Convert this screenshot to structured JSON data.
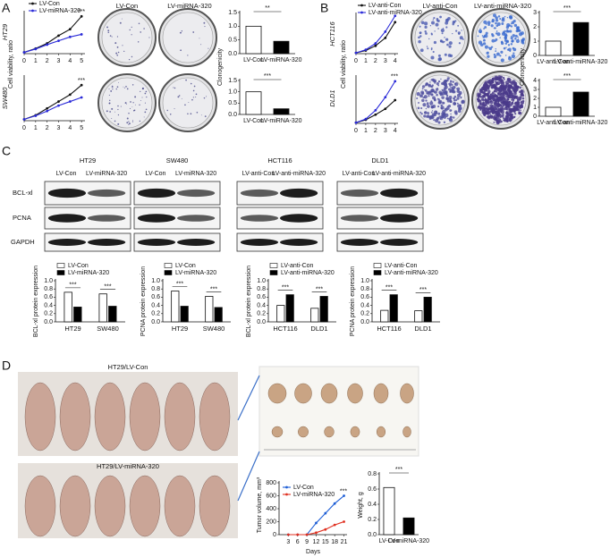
{
  "panel_labels": [
    "A",
    "B",
    "C",
    "D"
  ],
  "colony_photos": {
    "A": [
      "LV-Con",
      "LV-miRNA-320"
    ],
    "B": [
      "LV-anti-Con",
      "LV-anti-miRNA-320"
    ]
  },
  "western_blot": {
    "groups": [
      {
        "title": "HT29",
        "lanes": [
          "LV-Con",
          "LV-miRNA-320"
        ]
      },
      {
        "title": "SW480",
        "lanes": [
          "LV-Con",
          "LV-miRNA-320"
        ]
      },
      {
        "title": "HCT116",
        "lanes": [
          "LV-anti-Con",
          "LV-anti-miRNA-320"
        ]
      },
      {
        "title": "DLD1",
        "lanes": [
          "LV-anti-Con",
          "LV-anti-miRNA-320"
        ]
      }
    ],
    "rows": [
      "BCL-xl",
      "PCNA",
      "GAPDH"
    ]
  },
  "mouse_photos": [
    "HT29/LV-Con",
    "HT29/LV-miRNA-320"
  ],
  "chart_data": [
    {
      "type": "line",
      "side_label": "HT29",
      "y_label": "Cell viability, ratio",
      "x": [
        0,
        1,
        2,
        3,
        4,
        5
      ],
      "xlim": [
        0,
        5.3
      ],
      "xticks": [
        0,
        1,
        2,
        3,
        4,
        5
      ],
      "ylim": [
        0,
        1.6
      ],
      "series": [
        {
          "name": "LV-Con",
          "color": "#111111",
          "values": [
            0.05,
            0.2,
            0.4,
            0.7,
            0.95,
            1.45
          ]
        },
        {
          "name": "LV-miRNA-320",
          "color": "#2a2ad8",
          "values": [
            0.05,
            0.18,
            0.35,
            0.5,
            0.65,
            0.75
          ]
        }
      ],
      "annotations": [
        "***"
      ]
    },
    {
      "type": "line",
      "side_label": "SW480",
      "x": [
        0,
        1,
        2,
        3,
        4,
        5
      ],
      "xlim": [
        0,
        5.3
      ],
      "xticks": [
        0,
        1,
        2,
        3,
        4,
        5
      ],
      "ylim": [
        0,
        1.6
      ],
      "series": [
        {
          "color": "#111111",
          "values": [
            0.05,
            0.2,
            0.45,
            0.7,
            0.95,
            1.3
          ]
        },
        {
          "color": "#2a2ad8",
          "values": [
            0.05,
            0.18,
            0.35,
            0.55,
            0.7,
            0.85
          ]
        }
      ],
      "annotations": [
        "***"
      ]
    },
    {
      "type": "bar",
      "y_label": "Clonogenicity",
      "categories": [
        "LV-Con",
        "LV-miRNA-320"
      ],
      "values": [
        1.0,
        0.45
      ],
      "colors": [
        "#ffffff",
        "#000000"
      ],
      "ylim": [
        0,
        1.5
      ],
      "yticks": [
        {
          "value": 0,
          "label": "0.0"
        },
        0.5,
        {
          "value": 1,
          "label": "1.0"
        },
        1.5
      ],
      "annotations": [
        "**"
      ]
    },
    {
      "type": "bar",
      "categories": [
        "LV-Con",
        "LV-miRNA-320"
      ],
      "values": [
        1.0,
        0.25
      ],
      "colors": [
        "#ffffff",
        "#000000"
      ],
      "ylim": [
        0,
        1.5
      ],
      "yticks": [
        {
          "value": 0,
          "label": "0.0"
        },
        0.5,
        {
          "value": 1,
          "label": "1.0"
        },
        1.5
      ],
      "annotations": [
        "***"
      ]
    },
    {
      "type": "line",
      "side_label": "HCT116",
      "y_label": "Cell viability, ratio",
      "x": [
        0,
        1,
        2,
        3,
        4
      ],
      "xlim": [
        0,
        4.3
      ],
      "xticks": [
        0,
        1,
        2,
        3,
        4
      ],
      "ylim": [
        0,
        2.5
      ],
      "series": [
        {
          "name": "LV-anti-Con",
          "color": "#111111",
          "values": [
            0.05,
            0.2,
            0.5,
            1.0,
            2.0
          ]
        },
        {
          "name": "LV-anti-miRNA-320",
          "color": "#2a2ad8",
          "values": [
            0.05,
            0.25,
            0.65,
            1.4,
            2.4
          ]
        }
      ]
    },
    {
      "type": "line",
      "side_label": "DLD1",
      "x": [
        0,
        1,
        2,
        3,
        4
      ],
      "xlim": [
        0,
        4.3
      ],
      "xticks": [
        0,
        1,
        2,
        3,
        4
      ],
      "ylim": [
        0,
        3.2
      ],
      "series": [
        {
          "color": "#111111",
          "values": [
            0.05,
            0.25,
            0.6,
            1.0,
            1.6
          ]
        },
        {
          "color": "#2a2ad8",
          "values": [
            0.05,
            0.3,
            0.9,
            1.8,
            2.9
          ]
        }
      ],
      "annotations": [
        "***"
      ]
    },
    {
      "type": "bar",
      "y_label": "Clonogenicity",
      "categories": [
        "LV-anti-Con",
        "LV-anti-miRNA-320"
      ],
      "values": [
        1.0,
        2.3
      ],
      "colors": [
        "#ffffff",
        "#000000"
      ],
      "ylim": [
        0,
        3
      ],
      "yticks": [
        0,
        1,
        2,
        3
      ],
      "annotations": [
        "***"
      ]
    },
    {
      "type": "bar",
      "categories": [
        "LV-anti-Con",
        "LV-anti-miRNA-320"
      ],
      "values": [
        1.0,
        2.7
      ],
      "colors": [
        "#ffffff",
        "#000000"
      ],
      "ylim": [
        0,
        4
      ],
      "yticks": [
        0,
        1,
        2,
        3,
        4
      ],
      "annotations": [
        "***"
      ]
    },
    {
      "type": "grouped_bar",
      "y_label": "BCL-xl protein expression",
      "categories": [
        "HT29",
        "SW480"
      ],
      "series": [
        {
          "name": "LV-Con",
          "color": "#ffffff",
          "values": [
            0.72,
            0.68
          ]
        },
        {
          "name": "LV-miRNA-320",
          "color": "#000000",
          "values": [
            0.36,
            0.38
          ]
        }
      ],
      "ylim": [
        0,
        1
      ],
      "yticks": [
        {
          "value": 0,
          "label": "0.0"
        },
        0.2,
        0.4,
        0.6,
        0.8,
        {
          "value": 1,
          "label": "1.0"
        }
      ],
      "annotations": [
        "***",
        "***"
      ]
    },
    {
      "type": "grouped_bar",
      "y_label": "PCNA protein expression",
      "categories": [
        "HT29",
        "SW480"
      ],
      "series": [
        {
          "name": "LV-Con",
          "color": "#ffffff",
          "values": [
            0.75,
            0.62
          ]
        },
        {
          "name": "LV-miRNA-320",
          "color": "#000000",
          "values": [
            0.38,
            0.35
          ]
        }
      ],
      "ylim": [
        0,
        1
      ],
      "yticks": [
        {
          "value": 0,
          "label": "0.0"
        },
        0.2,
        0.4,
        0.6,
        0.8,
        {
          "value": 1,
          "label": "1.0"
        }
      ],
      "annotations": [
        "***",
        "***"
      ]
    },
    {
      "type": "grouped_bar",
      "y_label": "BCL-xl protein expression",
      "categories": [
        "HCT116",
        "DLD1"
      ],
      "series": [
        {
          "name": "LV-anti-Con",
          "color": "#ffffff",
          "values": [
            0.4,
            0.33
          ]
        },
        {
          "name": "LV-anti-miRNA-320",
          "color": "#000000",
          "values": [
            0.66,
            0.62
          ]
        }
      ],
      "ylim": [
        0,
        1
      ],
      "yticks": [
        {
          "value": 0,
          "label": "0.0"
        },
        0.2,
        0.4,
        0.6,
        0.8,
        {
          "value": 1,
          "label": "1.0"
        }
      ],
      "annotations": [
        "***",
        "***"
      ]
    },
    {
      "type": "grouped_bar",
      "y_label": "PCNA protein expression",
      "categories": [
        "HCT116",
        "DLD1"
      ],
      "series": [
        {
          "name": "LV-anti-Con",
          "color": "#ffffff",
          "values": [
            0.28,
            0.27
          ]
        },
        {
          "name": "LV-anti-miRNA-320",
          "color": "#000000",
          "values": [
            0.66,
            0.6
          ]
        }
      ],
      "ylim": [
        0,
        1
      ],
      "yticks": [
        {
          "value": 0,
          "label": "0.0"
        },
        0.2,
        0.4,
        0.6,
        0.8,
        {
          "value": 1,
          "label": "1.0"
        }
      ],
      "annotations": [
        "***",
        "***"
      ]
    },
    {
      "type": "line",
      "y_label": "Tumor volume, mm³",
      "x_label": "Days",
      "x": [
        3,
        6,
        9,
        12,
        15,
        18,
        21
      ],
      "xlim": [
        0,
        22
      ],
      "xticks": [
        3,
        6,
        9,
        12,
        15,
        18,
        21
      ],
      "ylim": [
        0,
        800
      ],
      "yticks": [
        0,
        200,
        400,
        600,
        800
      ],
      "series": [
        {
          "name": "LV-Con",
          "color": "#1f5fd6",
          "values": [
            0,
            0,
            0,
            180,
            330,
            480,
            600
          ]
        },
        {
          "name": "LV-miRNA-320",
          "color": "#e03020",
          "values": [
            0,
            0,
            0,
            30,
            80,
            150,
            200
          ]
        }
      ],
      "annotations": [
        "***"
      ]
    },
    {
      "type": "bar",
      "y_label": "Weight, g",
      "categories": [
        "LV-Con",
        "LV-miRNA-320"
      ],
      "values": [
        0.62,
        0.22
      ],
      "colors": [
        "#ffffff",
        "#000000"
      ],
      "ylim": [
        0,
        0.8
      ],
      "yticks": [
        {
          "value": 0,
          "label": "0.0"
        },
        0.2,
        0.4,
        0.6,
        0.8
      ],
      "annotations": [
        "***"
      ]
    }
  ]
}
